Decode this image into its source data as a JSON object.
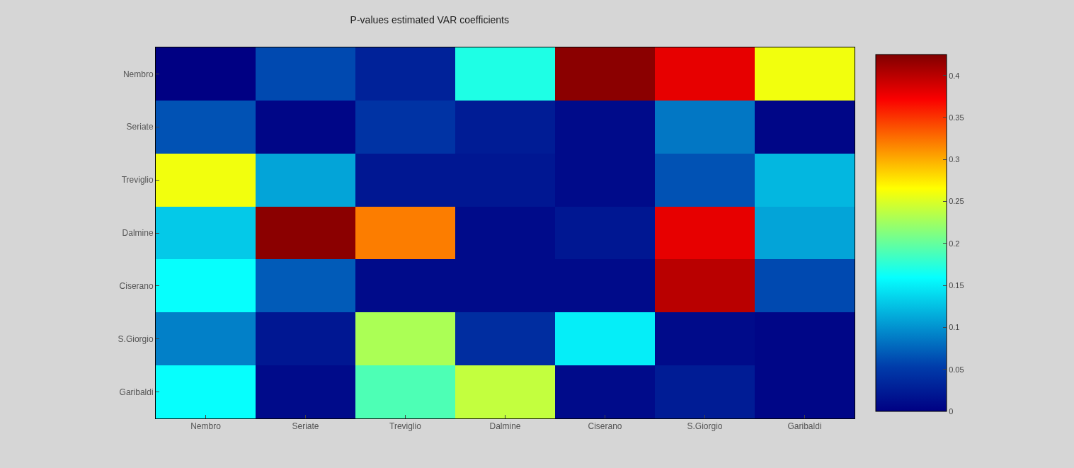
{
  "chart_data": {
    "type": "heatmap",
    "title": "P-values estimated VAR coefficients",
    "categories": [
      "Nembro",
      "Seriate",
      "Treviglio",
      "Dalmine",
      "Ciserano",
      "S.Giorgio",
      "Garibaldi"
    ],
    "y_categories": [
      "Nembro",
      "Seriate",
      "Treviglio",
      "Dalmine",
      "Ciserano",
      "S.Giorgio",
      "Garibaldi"
    ],
    "cells": [
      [
        0.0,
        0.06,
        0.03,
        0.17,
        0.42,
        0.38,
        0.26
      ],
      [
        0.065,
        0.005,
        0.045,
        0.025,
        0.01,
        0.085,
        0.005
      ],
      [
        0.26,
        0.11,
        0.02,
        0.02,
        0.01,
        0.065,
        0.12
      ],
      [
        0.13,
        0.42,
        0.32,
        0.01,
        0.02,
        0.38,
        0.11
      ],
      [
        0.16,
        0.07,
        0.01,
        0.01,
        0.01,
        0.4,
        0.06
      ],
      [
        0.09,
        0.02,
        0.23,
        0.04,
        0.15,
        0.01,
        0.005
      ],
      [
        0.16,
        0.01,
        0.19,
        0.24,
        0.01,
        0.025,
        0.005
      ]
    ],
    "clim": [
      0,
      0.425
    ],
    "cticks": [
      0,
      0.05,
      0.1,
      0.15,
      0.2,
      0.25,
      0.3,
      0.35,
      0.4
    ]
  }
}
